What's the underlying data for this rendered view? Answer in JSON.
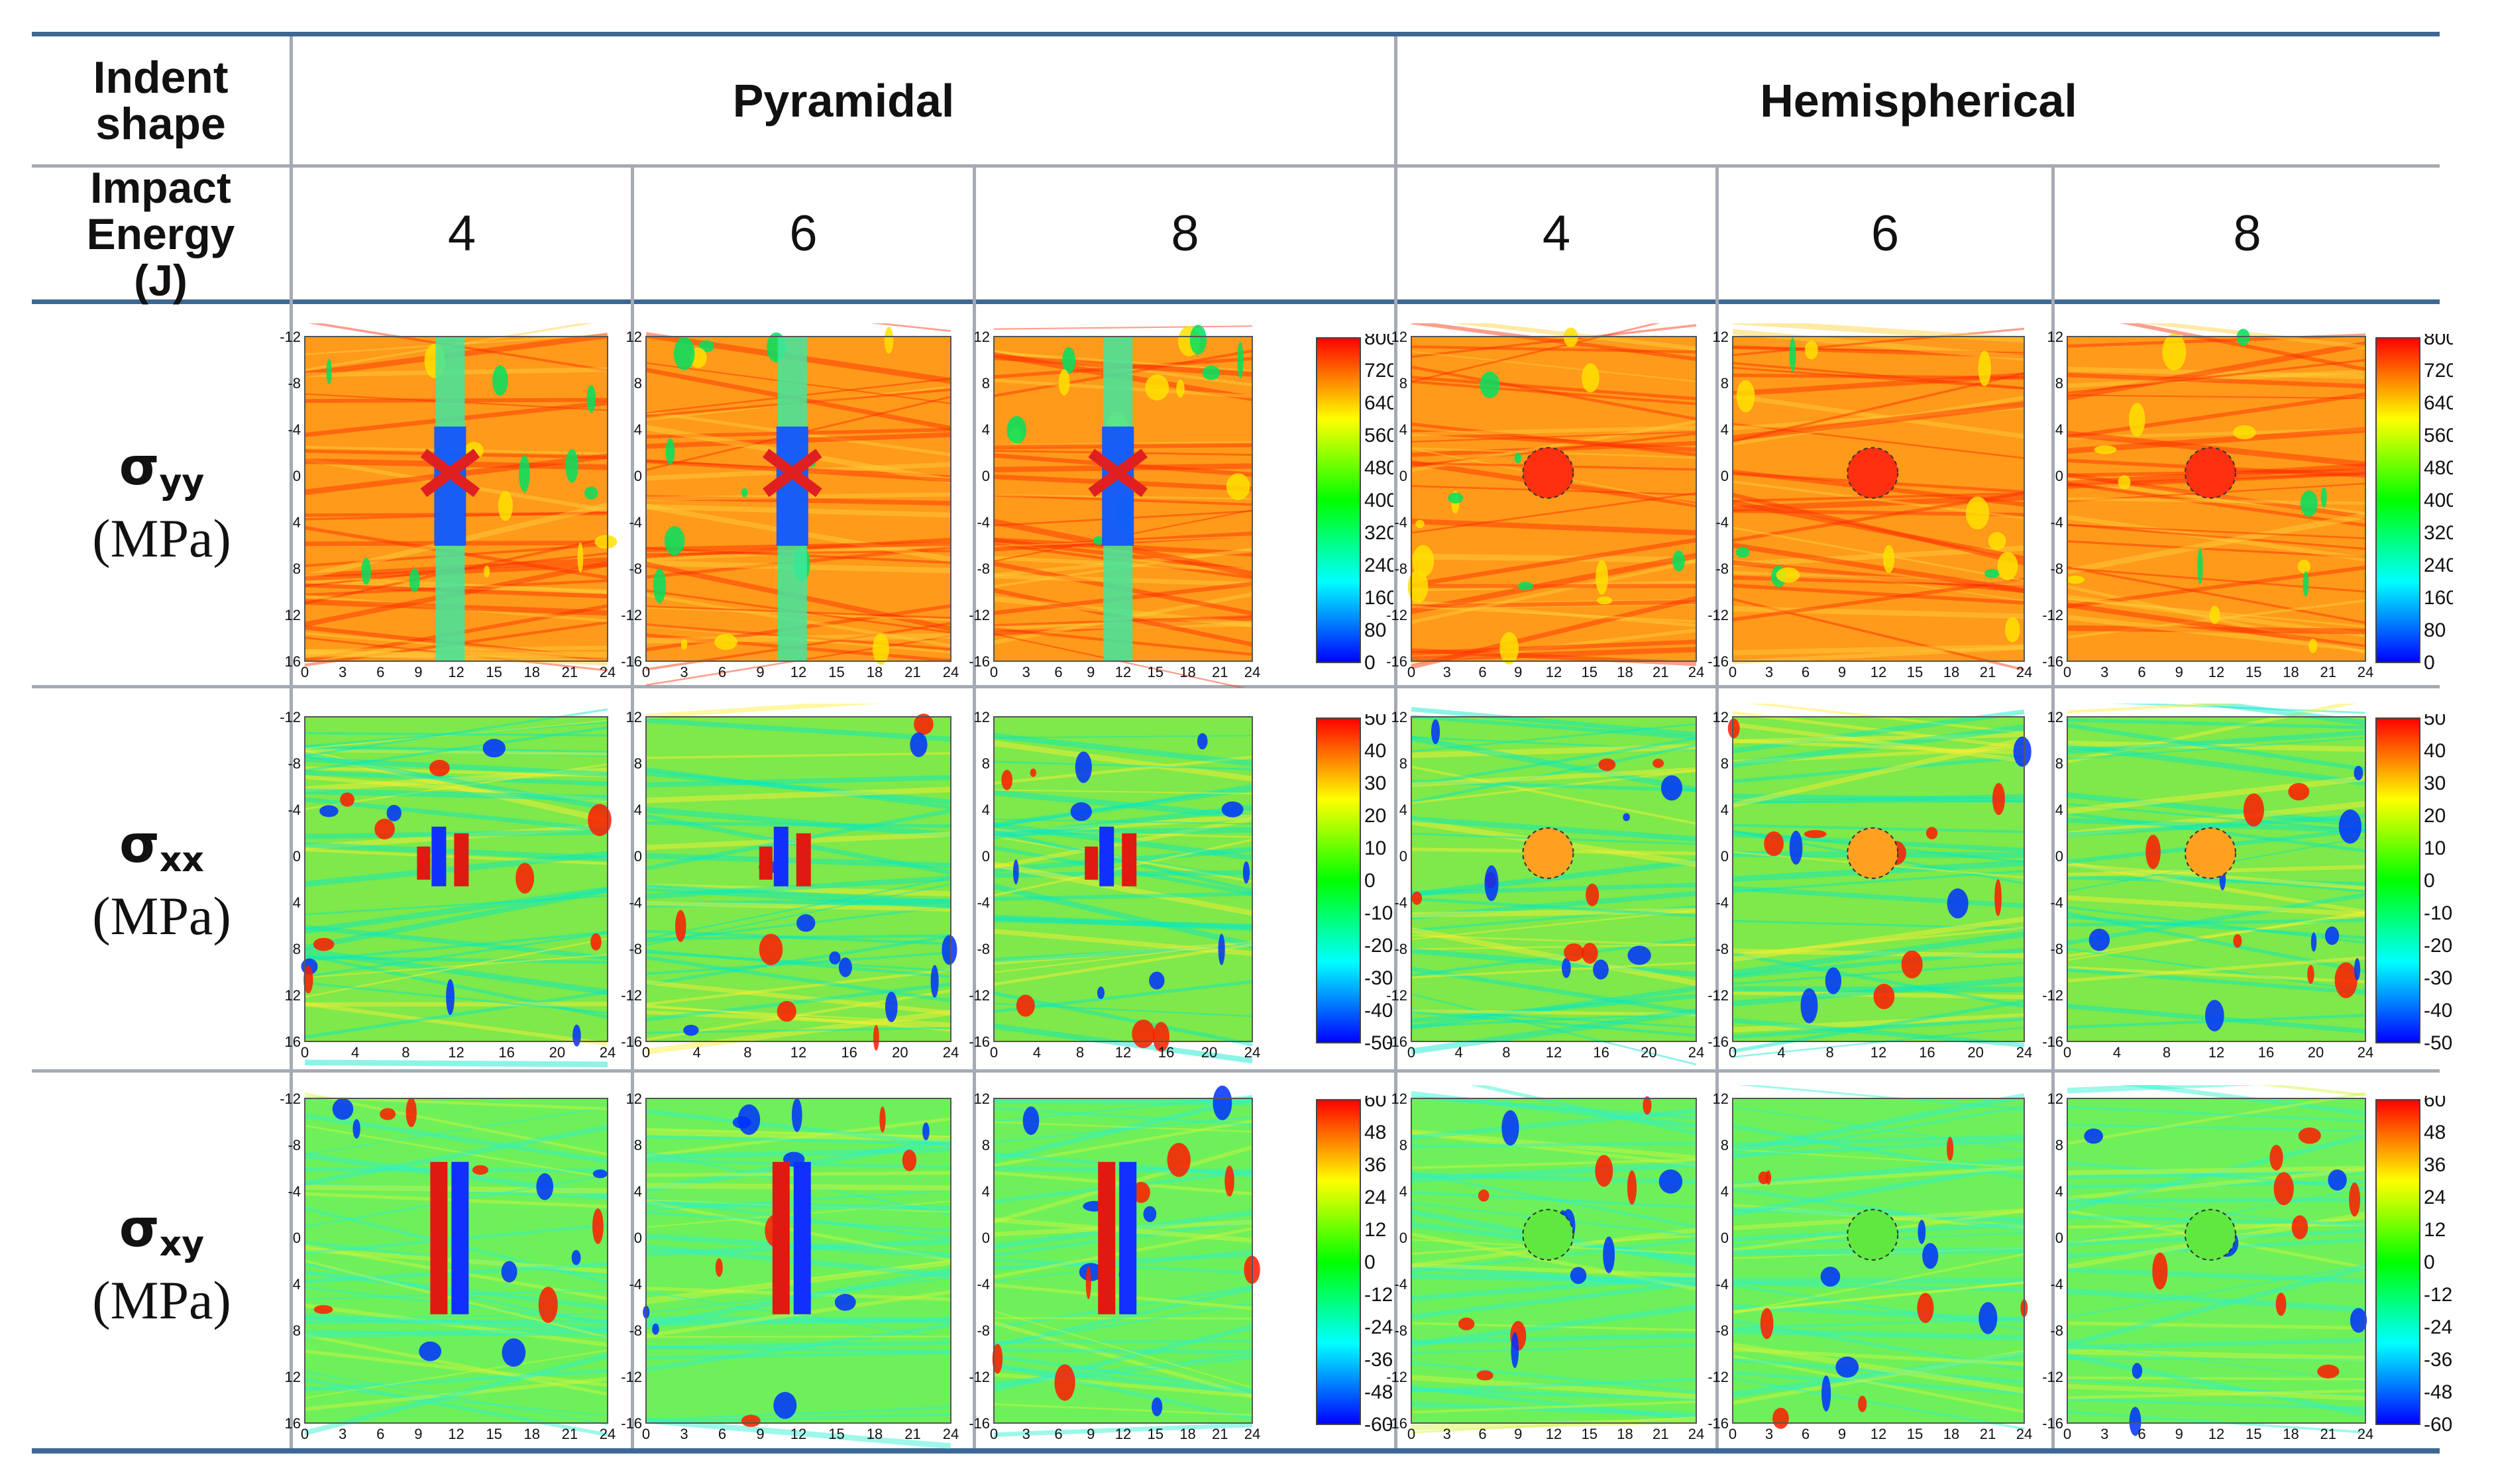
{
  "header": {
    "indent_shape_label": "Indent shape",
    "impact_energy_label": "Impact Energy (J)",
    "groups": [
      "Pyramidal",
      "Hemispherical"
    ],
    "energies": [
      "4",
      "6",
      "8",
      "4",
      "6",
      "8"
    ]
  },
  "rows": [
    {
      "symbol": "σ",
      "subscript": "yy",
      "unit": "(MPa)",
      "colorbar": [
        "800",
        "720",
        "640",
        "560",
        "480",
        "400",
        "320",
        "240",
        "160",
        "80",
        "0"
      ]
    },
    {
      "symbol": "σ",
      "subscript": "xx",
      "unit": "(MPa)",
      "colorbar": [
        "50",
        "40",
        "30",
        "20",
        "10",
        "0",
        "-10",
        "-20",
        "-30",
        "-40",
        "-50"
      ]
    },
    {
      "symbol": "σ",
      "subscript": "xy",
      "unit": "(MPa)",
      "colorbar": [
        "60",
        "48",
        "36",
        "24",
        "12",
        "0",
        "-12",
        "-24",
        "-36",
        "-48",
        "-60"
      ]
    }
  ],
  "axes": {
    "x_ticks_a": [
      "0",
      "3",
      "6",
      "9",
      "12",
      "15",
      "18",
      "21",
      "24"
    ],
    "x_ticks_b": [
      "0",
      "4",
      "8",
      "12",
      "16",
      "20",
      "24"
    ],
    "y_ticks_top_neg": [
      "-12",
      "-8",
      "-4",
      "0",
      "4",
      "8",
      "12",
      "16"
    ],
    "y_ticks_top_pos": [
      "12",
      "8",
      "4",
      "0",
      "-4",
      "-8",
      "-12",
      "-16"
    ]
  },
  "colors": {
    "rule": "#3d6894",
    "grid": "#a5aab3",
    "jet": [
      "#0000ff",
      "#0080ff",
      "#00ffff",
      "#00ff80",
      "#00ff00",
      "#80ff00",
      "#ffff00",
      "#ff8000",
      "#ff0000"
    ]
  }
}
